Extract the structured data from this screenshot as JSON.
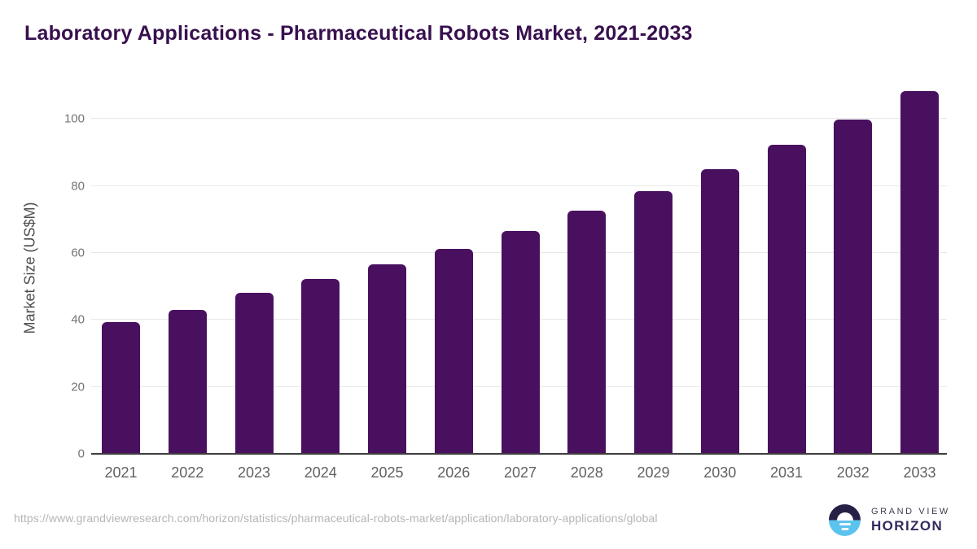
{
  "title": "Laboratory Applications - Pharmaceutical Robots Market, 2021-2033",
  "chart_data": {
    "type": "bar",
    "title": "Laboratory Applications - Pharmaceutical Robots Market, 2021-2033",
    "categories": [
      "2021",
      "2022",
      "2023",
      "2024",
      "2025",
      "2026",
      "2027",
      "2028",
      "2029",
      "2030",
      "2031",
      "2032",
      "2033"
    ],
    "values": [
      39.4,
      43.0,
      48.1,
      52.2,
      56.6,
      61.3,
      66.6,
      72.5,
      78.5,
      85.0,
      92.3,
      99.8,
      108.4
    ],
    "xlabel": "",
    "ylabel": "Market Size (US$M)",
    "ylim": [
      0,
      111.2
    ],
    "yticks": [
      0,
      20,
      40,
      60,
      80,
      100
    ],
    "grid": true,
    "legend": false,
    "bar_color": "#4a1060"
  },
  "footer": {
    "source_url": "https://www.grandviewresearch.com/horizon/statistics/pharmaceutical-robots-market/application/laboratory-applications/global",
    "logo": {
      "line1": "GRAND VIEW",
      "line2": "HORIZON"
    }
  },
  "colors": {
    "title": "#38104f",
    "bar": "#4a1060",
    "gridline": "#e8e8e8",
    "axis_line": "#3d3d3d",
    "y_tick_text": "#757575",
    "x_tick_text": "#616161",
    "axis_title_text": "#4d4d4d",
    "url_text": "#b5b5b5",
    "logo_blue": "#5bc3ee",
    "logo_dark": "#262046"
  }
}
